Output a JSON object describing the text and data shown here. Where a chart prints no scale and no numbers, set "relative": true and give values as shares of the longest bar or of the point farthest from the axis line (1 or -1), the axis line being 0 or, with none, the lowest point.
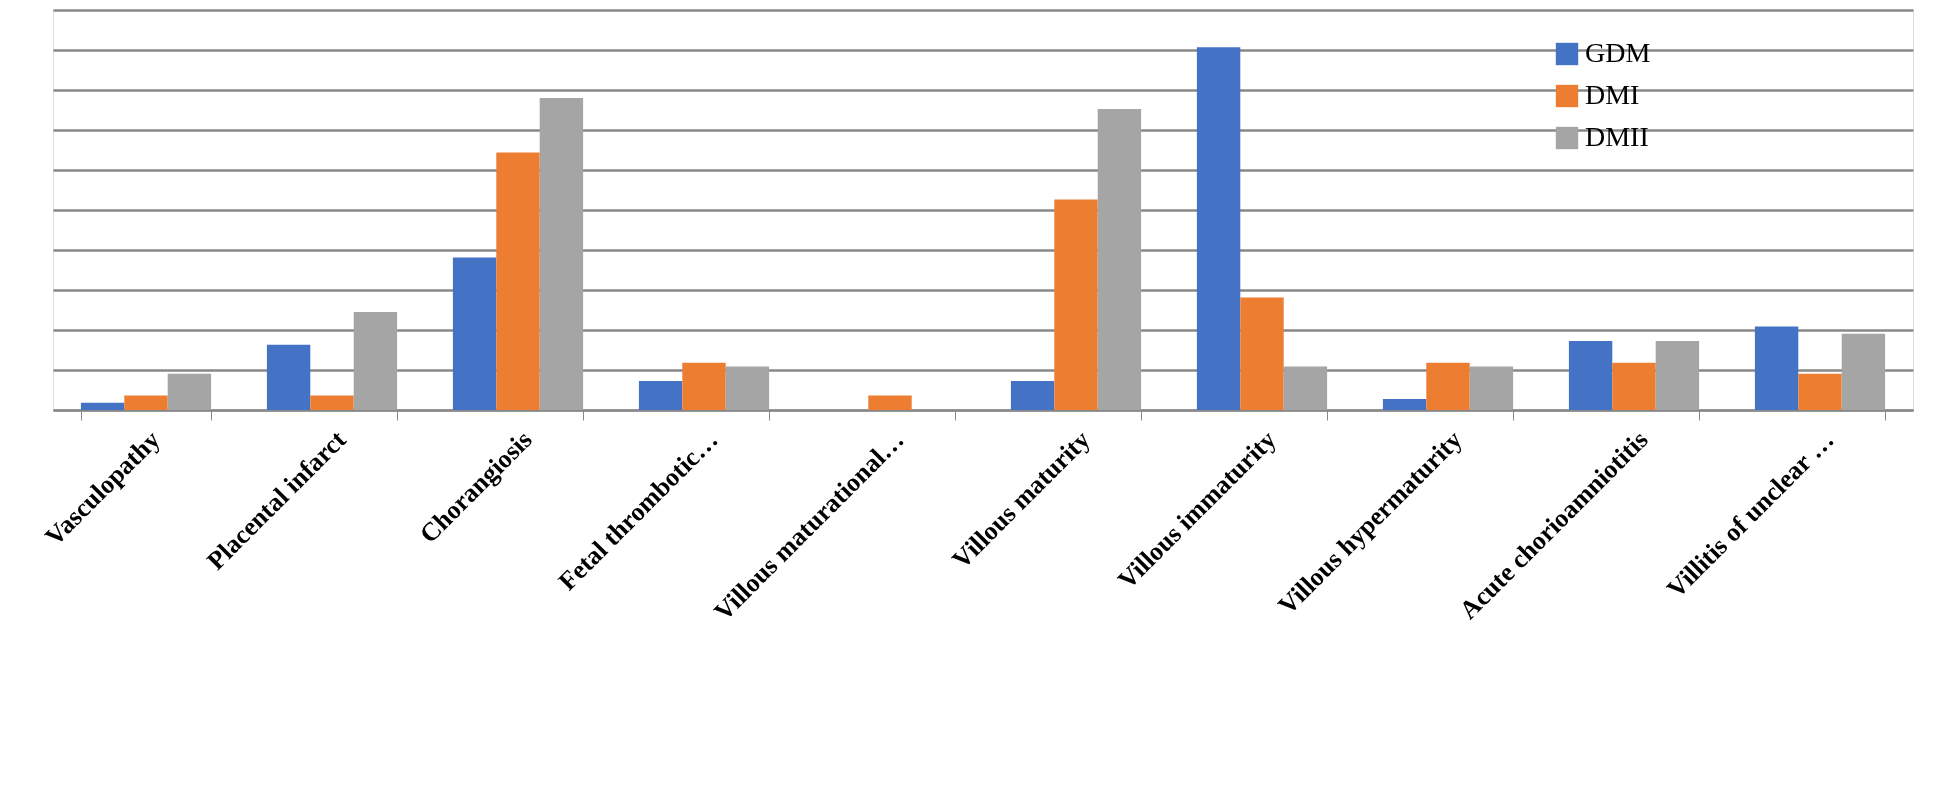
{
  "chart_data": {
    "type": "bar",
    "relative": true,
    "grid": "y",
    "legend": "top right",
    "categories": [
      "Vasculopathy",
      "Placental infarct",
      "Chorangiosis",
      "Fetal thrombotic…",
      "Villous maturational…",
      "Villous maturity",
      "Villous immaturity",
      "Villous hypermaturity",
      "Acute chorioamniotitis",
      "Villitis of unclear …"
    ],
    "series": [
      {
        "name": "GDM",
        "color": "#4472c4",
        "values": [
          0.02,
          0.18,
          0.42,
          0.08,
          0,
          0.08,
          1,
          0.03,
          0.19,
          0.23
        ]
      },
      {
        "name": "DMI",
        "color": "#ed7d31",
        "values": [
          0.04,
          0.04,
          0.71,
          0.13,
          0.04,
          0.58,
          0.31,
          0.13,
          0.13,
          0.1
        ]
      },
      {
        "name": "DMII",
        "color": "#a5a5a5",
        "values": [
          0.1,
          0.27,
          0.86,
          0.12,
          0,
          0.83,
          0.12,
          0.12,
          0.19,
          0.21
        ]
      }
    ]
  }
}
